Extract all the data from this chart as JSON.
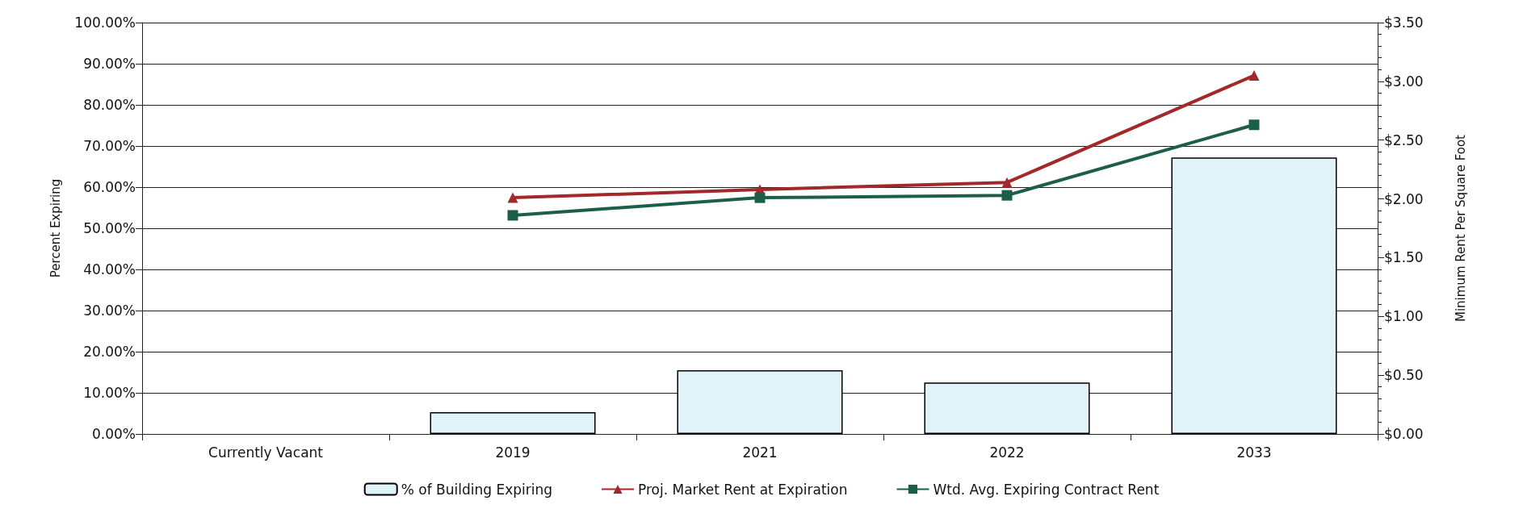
{
  "chart_data": {
    "type": "bar",
    "ylabel": "Percent Expiring",
    "y2label": "Minimum Rent Per Square Foot",
    "categories": [
      "Currently Vacant",
      "2019",
      "2021",
      "2022",
      "2033"
    ],
    "series": [
      {
        "name": "% of Building Expiring",
        "color": "#dff3f8",
        "values": [
          null,
          5.3,
          15.5,
          12.5,
          67.2
        ]
      },
      {
        "name": "Proj. Market Rent at Expiration",
        "type": "line",
        "axis": "y2",
        "marker": "triangle",
        "color": "#a3282a",
        "values": [
          null,
          2.01,
          2.08,
          2.14,
          3.05
        ]
      },
      {
        "name": "Wtd. Avg. Expiring Contract Rent",
        "type": "line",
        "axis": "y2",
        "marker": "square",
        "color": "#1b5e4a",
        "values": [
          null,
          1.86,
          2.01,
          2.03,
          2.63
        ]
      }
    ],
    "ylim": [
      0,
      100
    ],
    "yticks": [
      {
        "value": 0,
        "label": "0.00%"
      },
      {
        "value": 10,
        "label": "10.00%"
      },
      {
        "value": 20,
        "label": "20.00%"
      },
      {
        "value": 30,
        "label": "30.00%"
      },
      {
        "value": 40,
        "label": "40.00%"
      },
      {
        "value": 50,
        "label": "50.00%"
      },
      {
        "value": 60,
        "label": "60.00%"
      },
      {
        "value": 70,
        "label": "70.00%"
      },
      {
        "value": 80,
        "label": "80.00%"
      },
      {
        "value": 90,
        "label": "90.00%"
      },
      {
        "value": 100,
        "label": "100.00%"
      }
    ],
    "y2lim": [
      0,
      3.5
    ],
    "y2ticks": [
      {
        "value": 0,
        "label": "$0.00"
      },
      {
        "value": 0.5,
        "label": "$0.50"
      },
      {
        "value": 1,
        "label": "$1.00"
      },
      {
        "value": 1.5,
        "label": "$1.50"
      },
      {
        "value": 2,
        "label": "$2.00"
      },
      {
        "value": 2.5,
        "label": "$2.50"
      },
      {
        "value": 3,
        "label": "$3.00"
      },
      {
        "value": 3.5,
        "label": "$3.50"
      }
    ],
    "grid": "y",
    "legend": "bottom",
    "line_style": "solid"
  }
}
